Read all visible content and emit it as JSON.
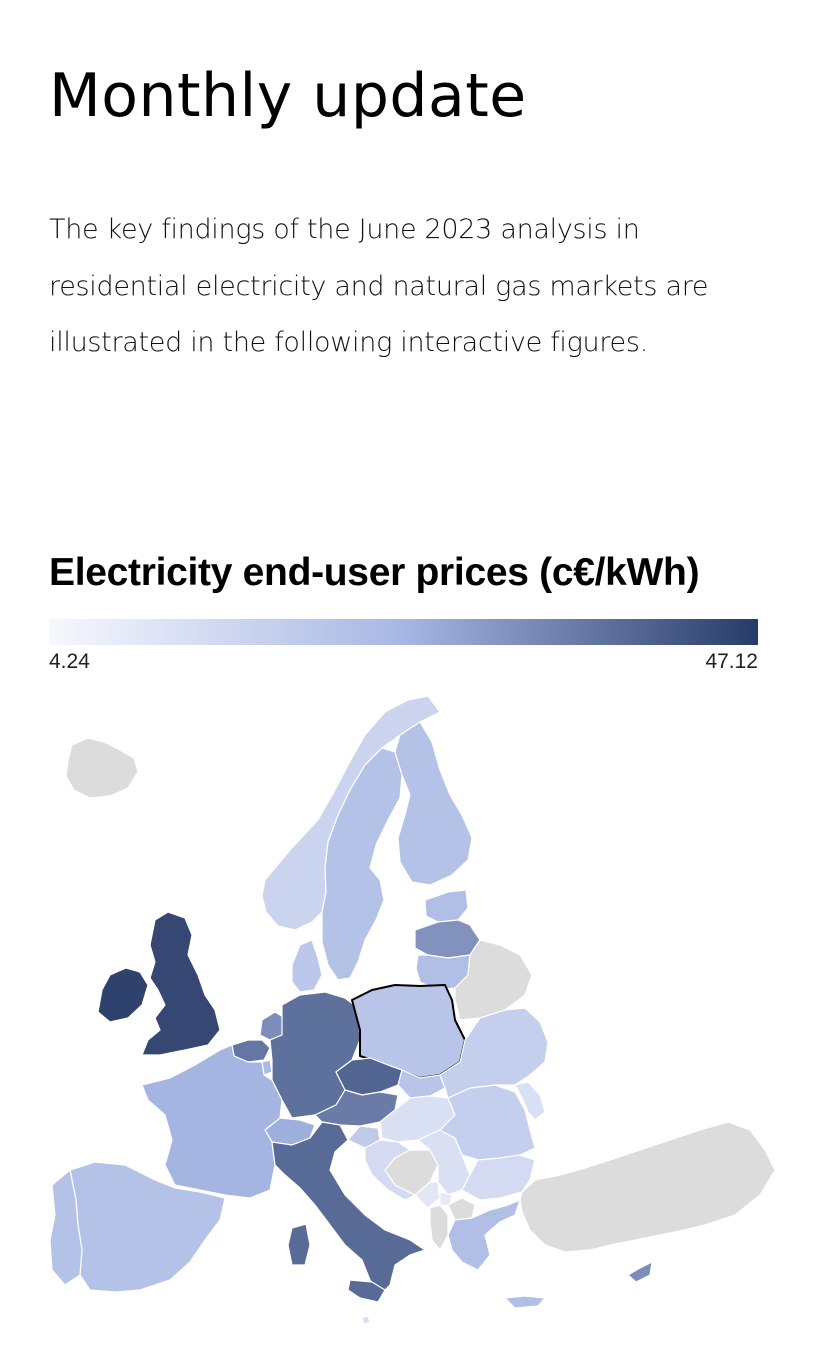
{
  "header": {
    "title": "Monthly update",
    "intro": "The key findings of the June 2023 analysis in residential electricity and natural gas markets are illustrated in the following interactive figures."
  },
  "colors": {
    "scale_low": "#f7f8fd",
    "scale_mid": "#a7b7e4",
    "scale_high": "#283b66",
    "no_data": "#dcdcdc",
    "border": "#ffffff",
    "selected_border": "#000000"
  },
  "chart_data": {
    "type": "choropleth",
    "title": "Electricity end-user prices (c€/kWh)",
    "legend": {
      "min": 4.24,
      "max": 47.12,
      "min_label": "4.24",
      "max_label": "47.12",
      "placement": "top"
    },
    "selected": "Poland",
    "regions": [
      {
        "name": "Iceland",
        "value": null
      },
      {
        "name": "Norway",
        "value": 16
      },
      {
        "name": "Sweden",
        "value": 22
      },
      {
        "name": "Finland",
        "value": 22
      },
      {
        "name": "Estonia",
        "value": 23
      },
      {
        "name": "Latvia",
        "value": 32
      },
      {
        "name": "Lithuania",
        "value": 23
      },
      {
        "name": "Denmark",
        "value": 20
      },
      {
        "name": "Ireland",
        "value": 46
      },
      {
        "name": "United Kingdom",
        "value": 45
      },
      {
        "name": "Netherlands",
        "value": 33
      },
      {
        "name": "Belgium",
        "value": 37
      },
      {
        "name": "Luxembourg",
        "value": 25
      },
      {
        "name": "Germany",
        "value": 38
      },
      {
        "name": "Poland",
        "value": 21
      },
      {
        "name": "Czechia",
        "value": 40
      },
      {
        "name": "Austria",
        "value": 36
      },
      {
        "name": "Switzerland",
        "value": 27
      },
      {
        "name": "France",
        "value": 26
      },
      {
        "name": "Spain",
        "value": 22
      },
      {
        "name": "Portugal",
        "value": 22
      },
      {
        "name": "Italy",
        "value": 39
      },
      {
        "name": "Slovenia",
        "value": 19
      },
      {
        "name": "Croatia",
        "value": 14
      },
      {
        "name": "Slovakia",
        "value": 21
      },
      {
        "name": "Hungary",
        "value": 12
      },
      {
        "name": "Romania",
        "value": 18
      },
      {
        "name": "Serbia",
        "value": 12
      },
      {
        "name": "Bosnia and Herzegovina",
        "value": null
      },
      {
        "name": "Montenegro",
        "value": 10
      },
      {
        "name": "Albania",
        "value": null
      },
      {
        "name": "North Macedonia",
        "value": null
      },
      {
        "name": "Kosovo",
        "value": 9
      },
      {
        "name": "Bulgaria",
        "value": 14
      },
      {
        "name": "Greece",
        "value": 23
      },
      {
        "name": "Cyprus",
        "value": 33
      },
      {
        "name": "Malta",
        "value": 13
      },
      {
        "name": "Moldova",
        "value": 12
      },
      {
        "name": "Ukraine",
        "value": 18
      },
      {
        "name": "Belarus",
        "value": null
      },
      {
        "name": "Turkey",
        "value": null
      }
    ]
  }
}
